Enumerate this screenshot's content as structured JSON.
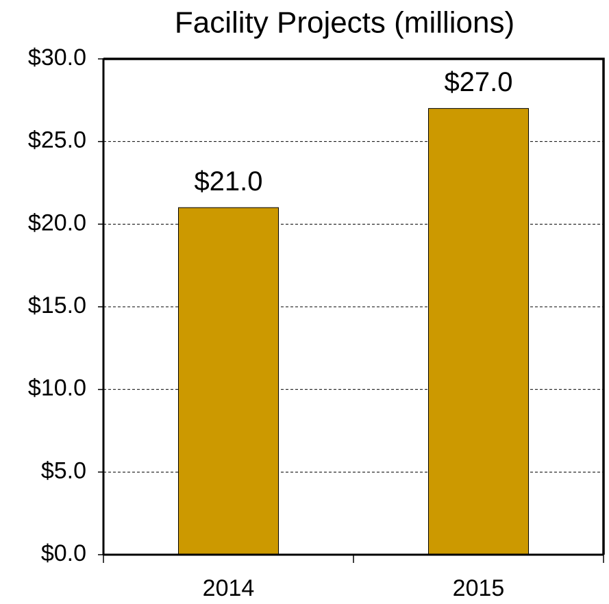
{
  "chart_data": {
    "type": "bar",
    "title": "Facility Projects (millions)",
    "categories": [
      "2014",
      "2015"
    ],
    "values": [
      21,
      27
    ],
    "value_labels": [
      "$21.0",
      "$27.0"
    ],
    "color": "#cc9900",
    "ylim": [
      0,
      30
    ],
    "yticks": [
      {
        "value": 0,
        "label": "$0.0"
      },
      {
        "value": 5,
        "label": "$5.0"
      },
      {
        "value": 10,
        "label": "$10.0"
      },
      {
        "value": 15,
        "label": "$15.0"
      },
      {
        "value": 20,
        "label": "$20.0"
      },
      {
        "value": 25,
        "label": "$25.0"
      },
      {
        "value": 30,
        "label": "$30.0"
      }
    ],
    "grid": true
  }
}
